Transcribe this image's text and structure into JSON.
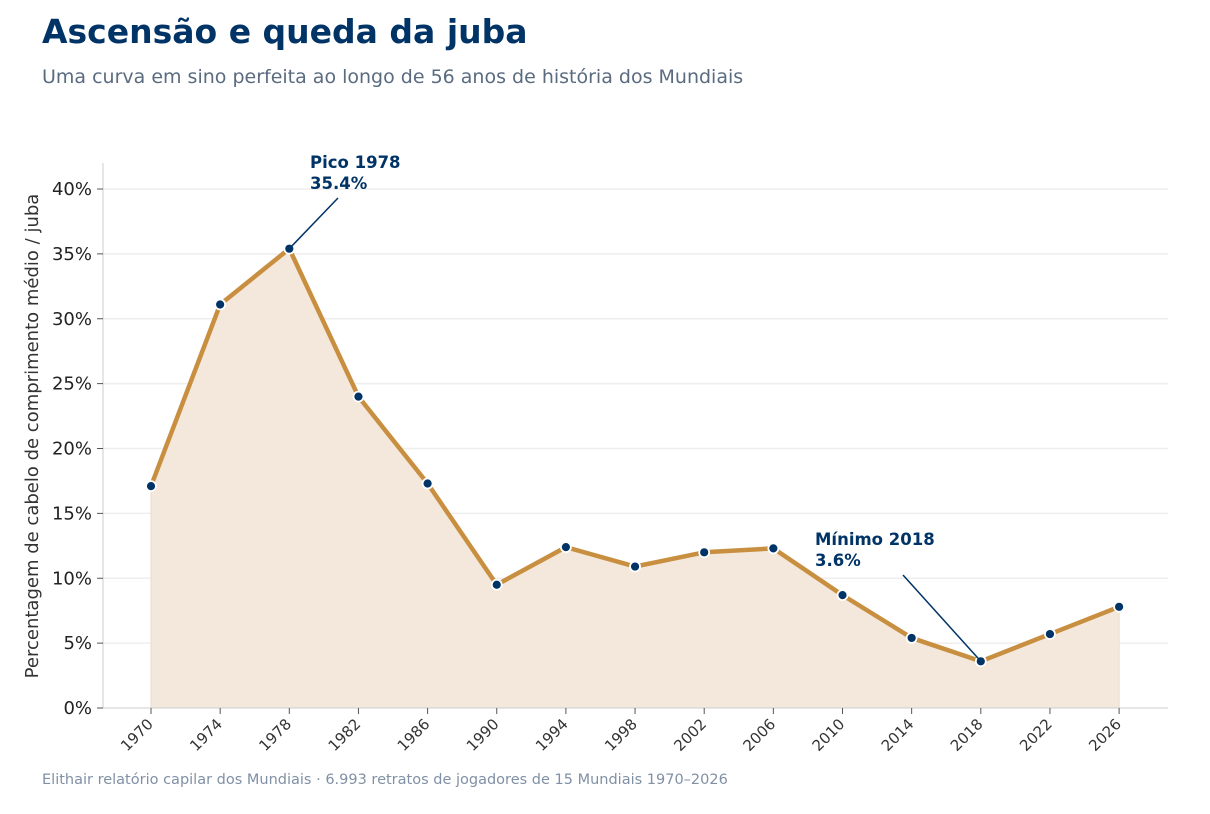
{
  "title": "Ascensão e queda da juba",
  "subtitle": "Uma curva em sino perfeita ao longo de 56 anos de história dos Mundiais",
  "footer": "Elithair relatório capilar dos Mundiais  ·  6.993 retratos de jogadores de 15 Mundiais 1970–2026",
  "colors": {
    "line": "#c98f40",
    "area": "#f3e8db",
    "marker": "#003366",
    "annotation": "#003366",
    "grid": "#eeeeee"
  },
  "chart_data": {
    "type": "area",
    "title": "Ascensão e queda da juba",
    "xlabel": "",
    "ylabel": "Percentagem de cabelo de comprimento médio / juba",
    "x": [
      "1970",
      "1974",
      "1978",
      "1982",
      "1986",
      "1990",
      "1994",
      "1998",
      "2002",
      "2006",
      "2010",
      "2014",
      "2018",
      "2022",
      "2026"
    ],
    "values": [
      17.1,
      31.1,
      35.4,
      24.0,
      17.3,
      9.5,
      12.4,
      10.9,
      12.0,
      12.3,
      8.7,
      5.4,
      3.6,
      5.7,
      7.8
    ],
    "ylim": [
      0,
      42
    ],
    "yticks": [
      0,
      5,
      10,
      15,
      20,
      25,
      30,
      35,
      40
    ],
    "ytick_labels": [
      "0%",
      "5%",
      "10%",
      "15%",
      "20%",
      "25%",
      "30%",
      "35%",
      "40%"
    ],
    "grid": true,
    "annotations": [
      {
        "x": "1978",
        "y": 35.4,
        "label_line1": "Pico 1978",
        "label_line2": "35.4%"
      },
      {
        "x": "2018",
        "y": 3.6,
        "label_line1": "Mínimo 2018",
        "label_line2": "3.6%"
      }
    ]
  }
}
